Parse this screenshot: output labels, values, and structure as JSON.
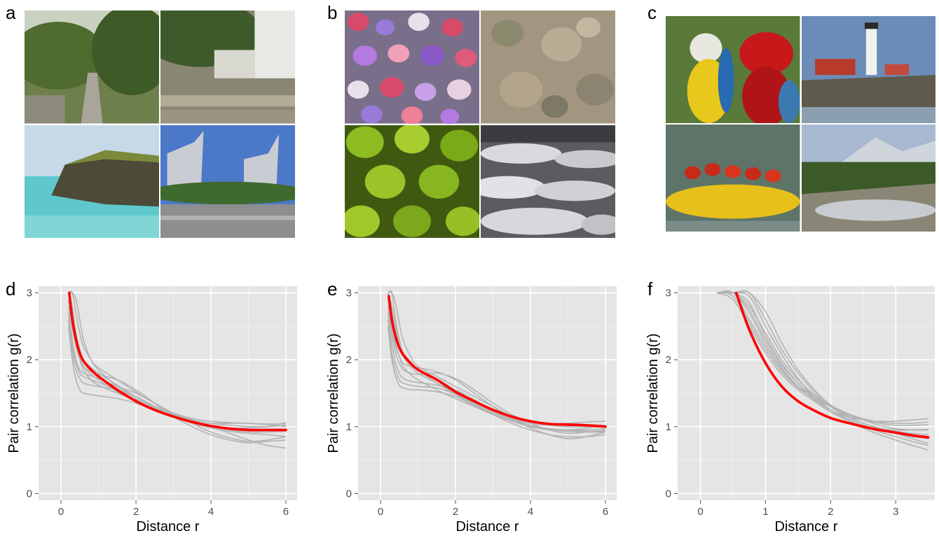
{
  "panel_labels": [
    "a",
    "b",
    "c",
    "d",
    "e",
    "f"
  ],
  "image_panels": [
    {
      "label": "a",
      "tiles": [
        "garden-path-photo",
        "courtyard-steps-photo",
        "coastal-cliff-photo",
        "tower-buildings-photo"
      ]
    },
    {
      "label": "b",
      "tiles": [
        "flower-field-texture",
        "lichen-rock-texture",
        "succulent-leaves-texture",
        "ice-floes-texture"
      ]
    },
    {
      "label": "c",
      "tiles": [
        "macaws-photo",
        "lighthouse-photo",
        "rafting-photo",
        "mountain-stream-photo"
      ]
    }
  ],
  "colors": {
    "panel_background": "#e5e5e5",
    "grid_major": "#ffffff",
    "individual_curve": "#b3b3b3",
    "mean_curve": "#ff0000"
  },
  "chart_data": [
    {
      "type": "line",
      "panel": "d",
      "xlabel": "Distance  r",
      "ylabel": "Pair correlation  g(r)",
      "xlim": [
        -0.6,
        6.3
      ],
      "ylim": [
        -0.1,
        3.1
      ],
      "xticks": [
        0,
        2,
        4,
        6
      ],
      "yticks": [
        0,
        1,
        2,
        3
      ],
      "x": [
        0.2,
        0.3,
        0.4,
        0.5,
        0.6,
        0.8,
        1.0,
        1.5,
        2.0,
        2.5,
        3.0,
        3.5,
        4.0,
        4.5,
        5.0,
        5.5,
        6.0
      ],
      "series": [
        {
          "values": [
            3.0,
            2.6,
            2.25,
            2.05,
            1.9,
            1.78,
            1.7,
            1.52,
            1.38,
            1.25,
            1.15,
            1.08,
            1.02,
            0.98,
            0.95,
            0.95,
            0.95
          ]
        },
        {
          "values": [
            2.5,
            2.0,
            1.7,
            1.55,
            1.5,
            1.48,
            1.46,
            1.42,
            1.35,
            1.25,
            1.15,
            1.05,
            0.98,
            0.93,
            0.9,
            0.88,
            0.85
          ]
        },
        {
          "values": [
            3.0,
            3.0,
            2.9,
            2.6,
            2.3,
            2.0,
            1.85,
            1.6,
            1.45,
            1.3,
            1.2,
            1.1,
            1.05,
            1.02,
            1.0,
            1.0,
            1.02
          ]
        },
        {
          "values": [
            2.8,
            2.3,
            2.0,
            1.85,
            1.8,
            1.76,
            1.72,
            1.6,
            1.5,
            1.35,
            1.2,
            1.1,
            1.05,
            1.05,
            1.05,
            1.03,
            1.0
          ]
        },
        {
          "values": [
            3.0,
            2.7,
            2.3,
            2.05,
            1.9,
            1.82,
            1.78,
            1.7,
            1.55,
            1.35,
            1.15,
            1.0,
            0.88,
            0.8,
            0.76,
            0.78,
            0.8
          ]
        },
        {
          "values": [
            2.9,
            2.5,
            2.2,
            2.0,
            1.85,
            1.7,
            1.62,
            1.5,
            1.4,
            1.3,
            1.2,
            1.12,
            1.08,
            1.06,
            1.05,
            1.04,
            1.04
          ]
        },
        {
          "values": [
            3.0,
            3.0,
            2.7,
            2.4,
            2.2,
            2.0,
            1.88,
            1.7,
            1.52,
            1.35,
            1.2,
            1.05,
            0.92,
            0.83,
            0.78,
            0.8,
            0.85
          ]
        },
        {
          "values": [
            2.7,
            2.2,
            1.95,
            1.8,
            1.75,
            1.7,
            1.66,
            1.55,
            1.42,
            1.28,
            1.15,
            1.06,
            1.0,
            0.98,
            0.98,
            1.0,
            1.06
          ]
        },
        {
          "values": [
            3.0,
            2.8,
            2.4,
            2.15,
            2.0,
            1.88,
            1.8,
            1.62,
            1.45,
            1.3,
            1.18,
            1.08,
            1.0,
            0.95,
            0.92,
            0.92,
            0.93
          ]
        },
        {
          "values": [
            2.6,
            2.1,
            1.85,
            1.72,
            1.65,
            1.62,
            1.6,
            1.55,
            1.45,
            1.3,
            1.18,
            1.08,
            1.0,
            0.9,
            0.8,
            0.72,
            0.68
          ]
        }
      ],
      "mean": {
        "x": [
          0.22,
          0.3,
          0.4,
          0.5,
          0.6,
          0.8,
          1.0,
          1.5,
          2.0,
          2.5,
          3.0,
          3.5,
          4.0,
          4.5,
          5.0,
          5.5,
          6.0
        ],
        "values": [
          3.0,
          2.6,
          2.3,
          2.1,
          1.98,
          1.85,
          1.75,
          1.55,
          1.38,
          1.25,
          1.15,
          1.07,
          1.01,
          0.97,
          0.95,
          0.95,
          0.95
        ]
      }
    },
    {
      "type": "line",
      "panel": "e",
      "xlabel": "Distance  r",
      "ylabel": "Pair correlation  g(r)",
      "xlim": [
        -0.6,
        6.3
      ],
      "ylim": [
        -0.1,
        3.1
      ],
      "xticks": [
        0,
        2,
        4,
        6
      ],
      "yticks": [
        0,
        1,
        2,
        3
      ],
      "x": [
        0.2,
        0.3,
        0.4,
        0.5,
        0.6,
        0.8,
        1.0,
        1.5,
        2.0,
        2.5,
        3.0,
        3.5,
        4.0,
        4.5,
        5.0,
        5.5,
        6.0
      ],
      "series": [
        {
          "values": [
            3.0,
            2.7,
            2.4,
            2.2,
            2.05,
            1.9,
            1.8,
            1.65,
            1.5,
            1.35,
            1.22,
            1.12,
            1.05,
            1.02,
            1.0,
            1.0,
            1.0
          ]
        },
        {
          "values": [
            2.6,
            2.1,
            1.85,
            1.7,
            1.65,
            1.62,
            1.6,
            1.58,
            1.48,
            1.32,
            1.18,
            1.05,
            0.95,
            0.88,
            0.85,
            0.85,
            0.88
          ]
        },
        {
          "values": [
            3.0,
            3.0,
            2.85,
            2.55,
            2.3,
            2.05,
            1.9,
            1.75,
            1.6,
            1.45,
            1.3,
            1.15,
            1.05,
            1.02,
            1.03,
            1.03,
            1.02
          ]
        },
        {
          "values": [
            2.8,
            2.4,
            2.1,
            1.95,
            1.85,
            1.8,
            1.78,
            1.8,
            1.72,
            1.55,
            1.35,
            1.18,
            1.05,
            0.95,
            0.9,
            0.92,
            0.95
          ]
        },
        {
          "values": [
            3.0,
            2.6,
            2.25,
            2.05,
            1.9,
            1.78,
            1.7,
            1.55,
            1.42,
            1.3,
            1.18,
            1.08,
            1.0,
            0.95,
            0.93,
            0.92,
            0.92
          ]
        },
        {
          "values": [
            2.9,
            2.5,
            2.2,
            2.05,
            1.95,
            1.9,
            1.88,
            1.82,
            1.7,
            1.5,
            1.3,
            1.12,
            0.98,
            0.88,
            0.82,
            0.85,
            0.92
          ]
        },
        {
          "values": [
            3.0,
            3.0,
            2.6,
            2.3,
            2.1,
            1.92,
            1.85,
            1.72,
            1.55,
            1.4,
            1.25,
            1.15,
            1.08,
            1.05,
            1.05,
            1.07,
            1.08
          ]
        },
        {
          "values": [
            2.7,
            2.25,
            1.95,
            1.8,
            1.72,
            1.68,
            1.66,
            1.62,
            1.55,
            1.4,
            1.25,
            1.12,
            1.02,
            0.96,
            0.95,
            0.98,
            1.02
          ]
        },
        {
          "values": [
            3.0,
            2.8,
            2.5,
            2.25,
            2.1,
            1.95,
            1.85,
            1.65,
            1.48,
            1.33,
            1.2,
            1.1,
            1.02,
            0.97,
            0.95,
            0.95,
            0.97
          ]
        },
        {
          "values": [
            2.5,
            2.0,
            1.75,
            1.62,
            1.58,
            1.55,
            1.55,
            1.52,
            1.45,
            1.32,
            1.2,
            1.1,
            1.02,
            0.97,
            0.94,
            0.93,
            0.93
          ]
        }
      ],
      "mean": {
        "x": [
          0.22,
          0.3,
          0.4,
          0.5,
          0.6,
          0.8,
          1.0,
          1.5,
          2.0,
          2.5,
          3.0,
          3.5,
          4.0,
          4.5,
          5.0,
          5.5,
          6.0
        ],
        "values": [
          2.95,
          2.6,
          2.35,
          2.18,
          2.08,
          1.95,
          1.85,
          1.7,
          1.52,
          1.38,
          1.25,
          1.15,
          1.08,
          1.04,
          1.03,
          1.02,
          1.0
        ]
      }
    },
    {
      "type": "line",
      "panel": "f",
      "xlabel": "Distance  r",
      "ylabel": "Pair correlation  g(r)",
      "xlim": [
        -0.35,
        3.6
      ],
      "ylim": [
        -0.1,
        3.1
      ],
      "xticks": [
        0,
        1,
        2,
        3
      ],
      "yticks": [
        0,
        1,
        2,
        3
      ],
      "x": [
        0.25,
        0.5,
        0.75,
        1.0,
        1.25,
        1.5,
        1.75,
        2.0,
        2.25,
        2.5,
        2.75,
        3.0,
        3.25,
        3.5
      ],
      "series": [
        {
          "values": [
            3.0,
            3.0,
            2.85,
            2.35,
            1.95,
            1.65,
            1.42,
            1.25,
            1.12,
            1.02,
            0.95,
            0.9,
            0.85,
            0.82
          ]
        },
        {
          "values": [
            3.0,
            3.0,
            2.7,
            2.25,
            1.88,
            1.6,
            1.4,
            1.25,
            1.15,
            1.1,
            1.08,
            1.08,
            1.1,
            1.12
          ]
        },
        {
          "values": [
            3.0,
            3.0,
            3.0,
            2.6,
            2.15,
            1.8,
            1.52,
            1.3,
            1.15,
            1.05,
            0.98,
            0.95,
            0.95,
            0.96
          ]
        },
        {
          "values": [
            3.0,
            2.9,
            2.5,
            2.1,
            1.78,
            1.55,
            1.38,
            1.22,
            1.1,
            1.0,
            0.92,
            0.85,
            0.78,
            0.72
          ]
        },
        {
          "values": [
            3.0,
            3.0,
            2.95,
            2.5,
            2.08,
            1.72,
            1.45,
            1.25,
            1.1,
            0.98,
            0.88,
            0.8,
            0.72,
            0.65
          ]
        },
        {
          "values": [
            3.0,
            3.0,
            2.6,
            2.2,
            1.85,
            1.6,
            1.45,
            1.32,
            1.2,
            1.1,
            1.02,
            0.97,
            0.95,
            0.95
          ]
        },
        {
          "values": [
            3.0,
            3.0,
            3.0,
            2.72,
            2.25,
            1.85,
            1.55,
            1.32,
            1.16,
            1.05,
            0.98,
            0.93,
            0.9,
            0.88
          ]
        },
        {
          "values": [
            3.0,
            2.95,
            2.55,
            2.15,
            1.82,
            1.58,
            1.42,
            1.3,
            1.2,
            1.12,
            1.07,
            1.05,
            1.05,
            1.07
          ]
        },
        {
          "values": [
            3.0,
            3.0,
            2.8,
            2.4,
            2.0,
            1.7,
            1.48,
            1.3,
            1.15,
            1.05,
            0.97,
            0.9,
            0.82,
            0.75
          ]
        },
        {
          "values": [
            3.0,
            3.0,
            2.75,
            2.3,
            1.92,
            1.65,
            1.45,
            1.3,
            1.18,
            1.1,
            1.05,
            1.02,
            1.02,
            1.03
          ]
        }
      ],
      "mean": {
        "x": [
          0.55,
          0.75,
          1.0,
          1.25,
          1.5,
          1.75,
          2.0,
          2.25,
          2.5,
          2.75,
          3.0,
          3.25,
          3.5
        ],
        "values": [
          3.0,
          2.45,
          1.95,
          1.6,
          1.38,
          1.24,
          1.13,
          1.06,
          1.0,
          0.95,
          0.91,
          0.87,
          0.84
        ]
      }
    }
  ]
}
